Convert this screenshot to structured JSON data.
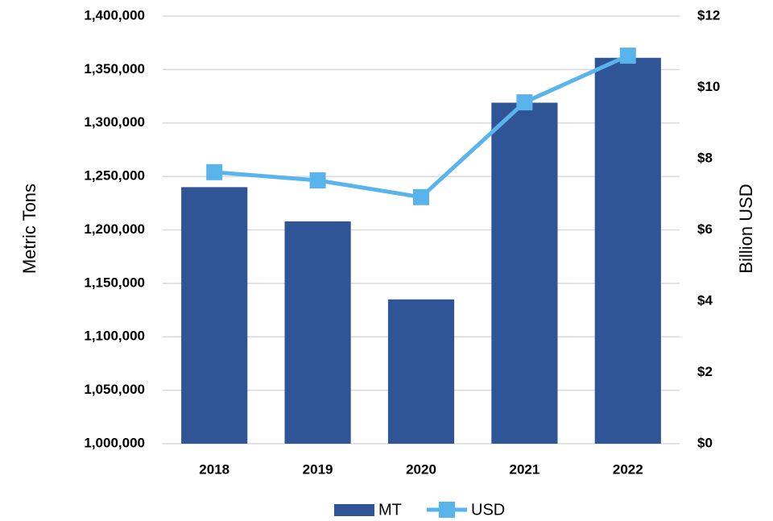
{
  "chart_data": {
    "type": "bar",
    "categories": [
      "2018",
      "2019",
      "2020",
      "2021",
      "2022"
    ],
    "series": [
      {
        "name": "MT",
        "type": "bar",
        "color": "#2f5597",
        "values": [
          1240000,
          1208000,
          1135000,
          1319000,
          1361000
        ]
      },
      {
        "name": "USD",
        "type": "line",
        "axis": "y2",
        "color": "#5ab4ec",
        "values": [
          7.62,
          7.39,
          6.92,
          9.58,
          10.89
        ]
      }
    ],
    "ylabel": "Metric Tons",
    "y2label": "Billion USD",
    "ylim": [
      1000000,
      1400000
    ],
    "yticks": [
      {
        "value": 1000000,
        "label": "1,000,000"
      },
      {
        "value": 1050000,
        "label": "1,050,000"
      },
      {
        "value": 1100000,
        "label": "1,100,000"
      },
      {
        "value": 1150000,
        "label": "1,150,000"
      },
      {
        "value": 1200000,
        "label": "1,200,000"
      },
      {
        "value": 1250000,
        "label": "1,250,000"
      },
      {
        "value": 1300000,
        "label": "1,300,000"
      },
      {
        "value": 1350000,
        "label": "1,350,000"
      },
      {
        "value": 1400000,
        "label": "1,400,000"
      }
    ],
    "y2lim": [
      0,
      12
    ],
    "y2ticks": [
      {
        "value": 0,
        "label": "$0"
      },
      {
        "value": 2,
        "label": "$2"
      },
      {
        "value": 4,
        "label": "$4"
      },
      {
        "value": 6,
        "label": "$6"
      },
      {
        "value": 8,
        "label": "$8"
      },
      {
        "value": 10,
        "label": "$10"
      },
      {
        "value": 12,
        "label": "$12"
      }
    ],
    "grid": true,
    "legend": "bottom"
  }
}
